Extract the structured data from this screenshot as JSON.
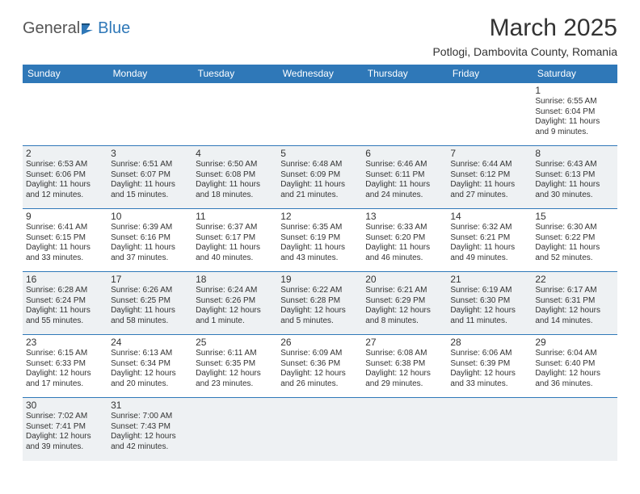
{
  "logo": {
    "word1": "General",
    "word2": "Blue"
  },
  "title": "March 2025",
  "location": "Potlogi, Dambovita County, Romania",
  "colors": {
    "accent": "#2f78b8",
    "shade": "#eef1f3",
    "text": "#333333",
    "bg": "#ffffff"
  },
  "day_headers": [
    "Sunday",
    "Monday",
    "Tuesday",
    "Wednesday",
    "Thursday",
    "Friday",
    "Saturday"
  ],
  "weeks": [
    [
      {
        "blank": true
      },
      {
        "blank": true
      },
      {
        "blank": true
      },
      {
        "blank": true
      },
      {
        "blank": true
      },
      {
        "blank": true
      },
      {
        "n": "1",
        "sr": "Sunrise: 6:55 AM",
        "ss": "Sunset: 6:04 PM",
        "dl1": "Daylight: 11 hours",
        "dl2": "and 9 minutes."
      }
    ],
    [
      {
        "n": "2",
        "sr": "Sunrise: 6:53 AM",
        "ss": "Sunset: 6:06 PM",
        "dl1": "Daylight: 11 hours",
        "dl2": "and 12 minutes."
      },
      {
        "n": "3",
        "sr": "Sunrise: 6:51 AM",
        "ss": "Sunset: 6:07 PM",
        "dl1": "Daylight: 11 hours",
        "dl2": "and 15 minutes."
      },
      {
        "n": "4",
        "sr": "Sunrise: 6:50 AM",
        "ss": "Sunset: 6:08 PM",
        "dl1": "Daylight: 11 hours",
        "dl2": "and 18 minutes."
      },
      {
        "n": "5",
        "sr": "Sunrise: 6:48 AM",
        "ss": "Sunset: 6:09 PM",
        "dl1": "Daylight: 11 hours",
        "dl2": "and 21 minutes."
      },
      {
        "n": "6",
        "sr": "Sunrise: 6:46 AM",
        "ss": "Sunset: 6:11 PM",
        "dl1": "Daylight: 11 hours",
        "dl2": "and 24 minutes."
      },
      {
        "n": "7",
        "sr": "Sunrise: 6:44 AM",
        "ss": "Sunset: 6:12 PM",
        "dl1": "Daylight: 11 hours",
        "dl2": "and 27 minutes."
      },
      {
        "n": "8",
        "sr": "Sunrise: 6:43 AM",
        "ss": "Sunset: 6:13 PM",
        "dl1": "Daylight: 11 hours",
        "dl2": "and 30 minutes."
      }
    ],
    [
      {
        "n": "9",
        "sr": "Sunrise: 6:41 AM",
        "ss": "Sunset: 6:15 PM",
        "dl1": "Daylight: 11 hours",
        "dl2": "and 33 minutes."
      },
      {
        "n": "10",
        "sr": "Sunrise: 6:39 AM",
        "ss": "Sunset: 6:16 PM",
        "dl1": "Daylight: 11 hours",
        "dl2": "and 37 minutes."
      },
      {
        "n": "11",
        "sr": "Sunrise: 6:37 AM",
        "ss": "Sunset: 6:17 PM",
        "dl1": "Daylight: 11 hours",
        "dl2": "and 40 minutes."
      },
      {
        "n": "12",
        "sr": "Sunrise: 6:35 AM",
        "ss": "Sunset: 6:19 PM",
        "dl1": "Daylight: 11 hours",
        "dl2": "and 43 minutes."
      },
      {
        "n": "13",
        "sr": "Sunrise: 6:33 AM",
        "ss": "Sunset: 6:20 PM",
        "dl1": "Daylight: 11 hours",
        "dl2": "and 46 minutes."
      },
      {
        "n": "14",
        "sr": "Sunrise: 6:32 AM",
        "ss": "Sunset: 6:21 PM",
        "dl1": "Daylight: 11 hours",
        "dl2": "and 49 minutes."
      },
      {
        "n": "15",
        "sr": "Sunrise: 6:30 AM",
        "ss": "Sunset: 6:22 PM",
        "dl1": "Daylight: 11 hours",
        "dl2": "and 52 minutes."
      }
    ],
    [
      {
        "n": "16",
        "sr": "Sunrise: 6:28 AM",
        "ss": "Sunset: 6:24 PM",
        "dl1": "Daylight: 11 hours",
        "dl2": "and 55 minutes."
      },
      {
        "n": "17",
        "sr": "Sunrise: 6:26 AM",
        "ss": "Sunset: 6:25 PM",
        "dl1": "Daylight: 11 hours",
        "dl2": "and 58 minutes."
      },
      {
        "n": "18",
        "sr": "Sunrise: 6:24 AM",
        "ss": "Sunset: 6:26 PM",
        "dl1": "Daylight: 12 hours",
        "dl2": "and 1 minute."
      },
      {
        "n": "19",
        "sr": "Sunrise: 6:22 AM",
        "ss": "Sunset: 6:28 PM",
        "dl1": "Daylight: 12 hours",
        "dl2": "and 5 minutes."
      },
      {
        "n": "20",
        "sr": "Sunrise: 6:21 AM",
        "ss": "Sunset: 6:29 PM",
        "dl1": "Daylight: 12 hours",
        "dl2": "and 8 minutes."
      },
      {
        "n": "21",
        "sr": "Sunrise: 6:19 AM",
        "ss": "Sunset: 6:30 PM",
        "dl1": "Daylight: 12 hours",
        "dl2": "and 11 minutes."
      },
      {
        "n": "22",
        "sr": "Sunrise: 6:17 AM",
        "ss": "Sunset: 6:31 PM",
        "dl1": "Daylight: 12 hours",
        "dl2": "and 14 minutes."
      }
    ],
    [
      {
        "n": "23",
        "sr": "Sunrise: 6:15 AM",
        "ss": "Sunset: 6:33 PM",
        "dl1": "Daylight: 12 hours",
        "dl2": "and 17 minutes."
      },
      {
        "n": "24",
        "sr": "Sunrise: 6:13 AM",
        "ss": "Sunset: 6:34 PM",
        "dl1": "Daylight: 12 hours",
        "dl2": "and 20 minutes."
      },
      {
        "n": "25",
        "sr": "Sunrise: 6:11 AM",
        "ss": "Sunset: 6:35 PM",
        "dl1": "Daylight: 12 hours",
        "dl2": "and 23 minutes."
      },
      {
        "n": "26",
        "sr": "Sunrise: 6:09 AM",
        "ss": "Sunset: 6:36 PM",
        "dl1": "Daylight: 12 hours",
        "dl2": "and 26 minutes."
      },
      {
        "n": "27",
        "sr": "Sunrise: 6:08 AM",
        "ss": "Sunset: 6:38 PM",
        "dl1": "Daylight: 12 hours",
        "dl2": "and 29 minutes."
      },
      {
        "n": "28",
        "sr": "Sunrise: 6:06 AM",
        "ss": "Sunset: 6:39 PM",
        "dl1": "Daylight: 12 hours",
        "dl2": "and 33 minutes."
      },
      {
        "n": "29",
        "sr": "Sunrise: 6:04 AM",
        "ss": "Sunset: 6:40 PM",
        "dl1": "Daylight: 12 hours",
        "dl2": "and 36 minutes."
      }
    ],
    [
      {
        "n": "30",
        "sr": "Sunrise: 7:02 AM",
        "ss": "Sunset: 7:41 PM",
        "dl1": "Daylight: 12 hours",
        "dl2": "and 39 minutes."
      },
      {
        "n": "31",
        "sr": "Sunrise: 7:00 AM",
        "ss": "Sunset: 7:43 PM",
        "dl1": "Daylight: 12 hours",
        "dl2": "and 42 minutes."
      },
      {
        "blank": true
      },
      {
        "blank": true
      },
      {
        "blank": true
      },
      {
        "blank": true
      },
      {
        "blank": true
      }
    ]
  ]
}
